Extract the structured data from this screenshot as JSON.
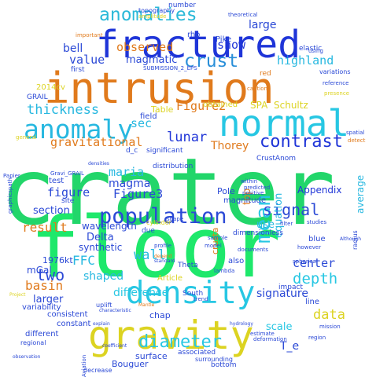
{
  "words": [
    {
      "id": "crater",
      "text": "crater",
      "color": "#22d66a"
    },
    {
      "id": "floor",
      "text": "floor",
      "color": "#1ee86b"
    },
    {
      "id": "intrusion",
      "text": "intrusion",
      "color": "#e07a1c"
    },
    {
      "id": "fractured",
      "text": "fractured",
      "color": "#1f35d8"
    },
    {
      "id": "gravity",
      "text": "gravity",
      "color": "#dcd321"
    },
    {
      "id": "normal",
      "text": "normal",
      "color": "#27c7e3"
    },
    {
      "id": "density",
      "text": "density",
      "color": "#27c7e3"
    },
    {
      "id": "anomaly",
      "text": "anomaly",
      "color": "#27b8e0"
    },
    {
      "id": "population",
      "text": "population",
      "color": "#2b49d6"
    },
    {
      "id": "mean",
      "text": "mean",
      "color": "#27c7e3"
    },
    {
      "id": "anomalies",
      "text": "anomalies",
      "color": "#2bb9d8"
    },
    {
      "id": "crust",
      "text": "crust",
      "color": "#2a8fd9"
    },
    {
      "id": "diameter",
      "text": "diameter",
      "color": "#27c7e3"
    },
    {
      "id": "contrast",
      "text": "contrast",
      "color": "#1f35d8"
    },
    {
      "id": "thickness",
      "text": "thickness",
      "color": "#27b8e0"
    },
    {
      "id": "signal",
      "text": "signal",
      "color": "#2b49d6"
    },
    {
      "id": "depth",
      "text": "depth",
      "color": "#27c7e3"
    },
    {
      "id": "gravitational",
      "text": "gravitational",
      "color": "#e07a1c"
    },
    {
      "id": "observed",
      "text": "observed",
      "color": "#e07a1c"
    },
    {
      "id": "highland",
      "text": "highland",
      "color": "#27b8e0"
    },
    {
      "id": "show",
      "text": "show",
      "color": "#1f35d8"
    },
    {
      "id": "magmatic",
      "text": "magmatic",
      "color": "#2b49d6"
    },
    {
      "id": "value",
      "text": "value",
      "color": "#2b49d6"
    },
    {
      "id": "lunar",
      "text": "lunar",
      "color": "#1f35d8"
    },
    {
      "id": "sec",
      "text": "sec",
      "color": "#27b8e0"
    },
    {
      "id": "Figure2",
      "text": "Figure2",
      "color": "#e07a1c"
    },
    {
      "id": "maria",
      "text": "maria",
      "color": "#27b8e0"
    },
    {
      "id": "figure",
      "text": "figure",
      "color": "#2b49d6"
    },
    {
      "id": "magma",
      "text": "magma",
      "color": "#2b49d6"
    },
    {
      "id": "two",
      "text": "two",
      "color": "#2b49d6"
    },
    {
      "id": "result",
      "text": "result",
      "color": "#e07a1c"
    },
    {
      "id": "wall",
      "text": "wall",
      "color": "#27b8e0"
    },
    {
      "id": "FFC",
      "text": "FFC",
      "color": "#27b8e0"
    },
    {
      "id": "shaped",
      "text": "shaped",
      "color": "#27b8e0"
    },
    {
      "id": "Figure3",
      "text": "Figure3",
      "color": "#2b49d6"
    },
    {
      "id": "difference",
      "text": "difference",
      "color": "#27c7e3"
    },
    {
      "id": "section",
      "text": "section",
      "color": "#2b49d6"
    },
    {
      "id": "equation",
      "text": "equation",
      "color": "#27b8e0"
    },
    {
      "id": "center",
      "text": "center",
      "color": "#2b49d6"
    },
    {
      "id": "data",
      "text": "data",
      "color": "#dcd321"
    },
    {
      "id": "signature",
      "text": "signature",
      "color": "#2b49d6"
    },
    {
      "id": "Thorey",
      "text": "Thorey",
      "color": "#e07a1c"
    },
    {
      "id": "Appendix",
      "text": "Appendix",
      "color": "#1f35d8"
    },
    {
      "id": "average",
      "text": "average",
      "color": "#27b8e0"
    },
    {
      "id": "larger",
      "text": "larger",
      "color": "#2b49d6"
    },
    {
      "id": "basin",
      "text": "basin",
      "color": "#e07a1c"
    },
    {
      "id": "mGal",
      "text": "mGal",
      "color": "#2b49d6"
    },
    {
      "id": "Delta",
      "text": "Delta",
      "color": "#2b49d6"
    },
    {
      "id": "synthetic",
      "text": "synthetic",
      "color": "#2b49d6"
    },
    {
      "id": "wavelength",
      "text": "wavelength",
      "color": "#2b49d6"
    },
    {
      "id": "bell",
      "text": "bell",
      "color": "#2b49d6"
    },
    {
      "id": "large",
      "text": "large",
      "color": "#2b49d6"
    },
    {
      "id": "SPA",
      "text": "SPA",
      "color": "#dcd321"
    },
    {
      "id": "Schultz",
      "text": "Schultz",
      "color": "#dcd321"
    },
    {
      "id": "scale",
      "text": "scale",
      "color": "#27c7e3"
    },
    {
      "id": "T_e",
      "text": "T_e",
      "color": "#2b49d6"
    },
    {
      "id": "1976kt",
      "text": "1976kt",
      "color": "#2b49d6"
    },
    {
      "id": "Bouguer",
      "text": "Bouguer",
      "color": "#2b49d6"
    },
    {
      "id": "surface",
      "text": "surface",
      "color": "#2b49d6"
    },
    {
      "id": "constant",
      "text": "constant",
      "color": "#2b49d6"
    },
    {
      "id": "consistent",
      "text": "consistent",
      "color": "#2b49d6"
    },
    {
      "id": "different",
      "text": "different",
      "color": "#2b49d6"
    },
    {
      "id": "top",
      "text": "top",
      "color": "#e07a1c"
    },
    {
      "id": "use",
      "text": "use",
      "color": "#27b8e0"
    },
    {
      "id": "crusta",
      "text": "crusta",
      "color": "#e07a1c"
    },
    {
      "id": "Pole",
      "text": "Pole",
      "color": "#2b49d6"
    },
    {
      "id": "magnitude",
      "text": "magnitude",
      "color": "#2b49d6"
    },
    {
      "id": "blue",
      "text": "blue",
      "color": "#2b49d6"
    },
    {
      "id": "obtained",
      "text": "obtained",
      "color": "#dcd321"
    },
    {
      "id": "Table",
      "text": "Table",
      "color": "#dcd321"
    },
    {
      "id": "field",
      "text": "field",
      "color": "#2b49d6"
    },
    {
      "id": "significant",
      "text": "significant",
      "color": "#2b49d6"
    },
    {
      "id": "distribution",
      "text": "distribution",
      "color": "#2b49d6"
    },
    {
      "id": "CrustAnom",
      "text": "CrustAnom",
      "color": "#2b49d6"
    },
    {
      "id": "test",
      "text": "test",
      "color": "#2b49d6"
    },
    {
      "id": "site",
      "text": "site",
      "color": "#2b49d6"
    },
    {
      "id": "variability",
      "text": "variability",
      "color": "#2b49d6"
    },
    {
      "id": "Article",
      "text": "Article",
      "color": "#dcd321"
    },
    {
      "id": "dimensionless",
      "text": "dimensionless",
      "color": "#2b49d6"
    },
    {
      "id": "2014cv",
      "text": "2014cv",
      "color": "#dcd321"
    },
    {
      "id": "GRAIL",
      "text": "GRAIL",
      "color": "#2b49d6"
    },
    {
      "id": "rho",
      "text": "rho",
      "color": "#2b49d6"
    },
    {
      "id": "elastic",
      "text": "elastic",
      "color": "#2b49d6"
    },
    {
      "id": "variations",
      "text": "variations",
      "color": "#2b49d6"
    },
    {
      "id": "first",
      "text": "first",
      "color": "#2b49d6"
    },
    {
      "id": "red",
      "text": "red",
      "color": "#e07a1c"
    },
    {
      "id": "Pike",
      "text": "Pike",
      "color": "#2b49d6"
    },
    {
      "id": "due",
      "text": "due",
      "color": "#2b49d6"
    },
    {
      "id": "also",
      "text": "also",
      "color": "#2b49d6"
    },
    {
      "id": "South",
      "text": "South",
      "color": "#2b49d6"
    },
    {
      "id": "Theta",
      "text": "Theta",
      "color": "#2b49d6"
    },
    {
      "id": "chap",
      "text": "chap",
      "color": "#2b49d6"
    },
    {
      "id": "bottom",
      "text": "bottom",
      "color": "#2b49d6"
    },
    {
      "id": "associated",
      "text": "associated",
      "color": "#2b49d6"
    },
    {
      "id": "impact",
      "text": "impact",
      "color": "#2b49d6"
    },
    {
      "id": "line",
      "text": "line",
      "color": "#2b49d6"
    },
    {
      "id": "topography",
      "text": "topography",
      "color": "#2b49d6"
    },
    {
      "id": "number",
      "text": "number",
      "color": "#2b49d6"
    },
    {
      "id": "SUBMISSION_2_EPS",
      "text": "SUBMISSION_2_EPS",
      "color": "#2b49d6"
    },
    {
      "id": "d_c",
      "text": "d_c",
      "color": "#2b49d6"
    },
    {
      "id": "radius",
      "text": "radius",
      "color": "#2b49d6"
    },
    {
      "id": "cylinder",
      "text": "cylinder",
      "color": "#dcd321"
    },
    {
      "id": "decrease",
      "text": "decrease",
      "color": "#2b49d6"
    },
    {
      "id": "surrounding",
      "text": "surrounding",
      "color": "#2b49d6"
    },
    {
      "id": "reference",
      "text": "reference",
      "color": "#2b49d6"
    },
    {
      "id": "presence",
      "text": "presence",
      "color": "#dcd321"
    },
    {
      "id": "spatial",
      "text": "spatial",
      "color": "#2b49d6"
    },
    {
      "id": "detect",
      "text": "detect",
      "color": "#e07a1c"
    },
    {
      "id": "caption",
      "text": "caption",
      "color": "#e07a1c"
    },
    {
      "id": "regional",
      "text": "regional",
      "color": "#2b49d6"
    },
    {
      "id": "Papier",
      "text": "Papier",
      "color": "#2b49d6"
    },
    {
      "id": "graphicspath",
      "text": "graphicspath",
      "color": "#2b49d6"
    },
    {
      "id": "uplift",
      "text": "uplift",
      "color": "#2b49d6"
    },
    {
      "id": "Aviation",
      "text": "Aviation",
      "color": "#2b49d6"
    },
    {
      "id": "documents",
      "text": "documents",
      "color": "#2b49d6"
    },
    {
      "id": "estimate",
      "text": "estimate",
      "color": "#2b49d6"
    },
    {
      "id": "deformation",
      "text": "deformation",
      "color": "#2b49d6"
    },
    {
      "id": "profile",
      "text": "profile",
      "color": "#2b49d6"
    },
    {
      "id": "trend",
      "text": "trend",
      "color": "#2b49d6"
    },
    {
      "id": "lambda",
      "text": "lambda",
      "color": "#2b49d6"
    },
    {
      "id": "mission",
      "text": "mission",
      "color": "#2b49d6"
    },
    {
      "id": "region",
      "text": "region",
      "color": "#2b49d6"
    },
    {
      "id": "important",
      "text": "important",
      "color": "#e07a1c"
    },
    {
      "id": "amplitude",
      "text": "amplitude",
      "color": "#dcd321"
    },
    {
      "id": "theoretical",
      "text": "theoretical",
      "color": "#2b49d6"
    },
    {
      "id": "using",
      "text": "using",
      "color": "#2b49d6"
    },
    {
      "id": "general",
      "text": "general",
      "color": "#dcd321"
    },
    {
      "id": "standard",
      "text": "standard",
      "color": "#2b49d6"
    },
    {
      "id": "spherical",
      "text": "spherical",
      "color": "#2b49d6"
    },
    {
      "id": "however",
      "text": "however",
      "color": "#2b49d6"
    },
    {
      "id": "sample",
      "text": "sample",
      "color": "#2b49d6"
    },
    {
      "id": "model",
      "text": "model",
      "color": "#2b49d6"
    },
    {
      "id": "filter",
      "text": "filter",
      "color": "#2b49d6"
    },
    {
      "id": "predicted",
      "text": "predicted",
      "color": "#2b49d6"
    },
    {
      "id": "positive",
      "text": "positive",
      "color": "#2b49d6"
    },
    {
      "id": "studies",
      "text": "studies",
      "color": "#2b49d6"
    },
    {
      "id": "Although",
      "text": "Although",
      "color": "#2b49d6"
    },
    {
      "id": "characteristic",
      "text": "characteristic",
      "color": "#2b49d6"
    },
    {
      "id": "observation",
      "text": "observation",
      "color": "#2b49d6"
    },
    {
      "id": "explain",
      "text": "explain",
      "color": "#2b49d6"
    },
    {
      "id": "depend",
      "text": "depend",
      "color": "#e07a1c"
    },
    {
      "id": "Project",
      "text": "Project",
      "color": "#dcd321"
    },
    {
      "id": "shape",
      "text": "shape",
      "color": "#2b49d6"
    },
    {
      "id": "within",
      "text": "within",
      "color": "#2b49d6"
    },
    {
      "id": "Gravi_GRAIL",
      "text": "Gravi_GRAIL",
      "color": "#2b49d6"
    },
    {
      "id": "densities",
      "text": "densities",
      "color": "#2b49d6"
    },
    {
      "id": "Mantle",
      "text": "Mantle",
      "color": "#e07a1c"
    },
    {
      "id": "coefficient",
      "text": "coefficient",
      "color": "#2b49d6"
    },
    {
      "id": "hydrology",
      "text": "hydrology",
      "color": "#2b49d6"
    }
  ]
}
